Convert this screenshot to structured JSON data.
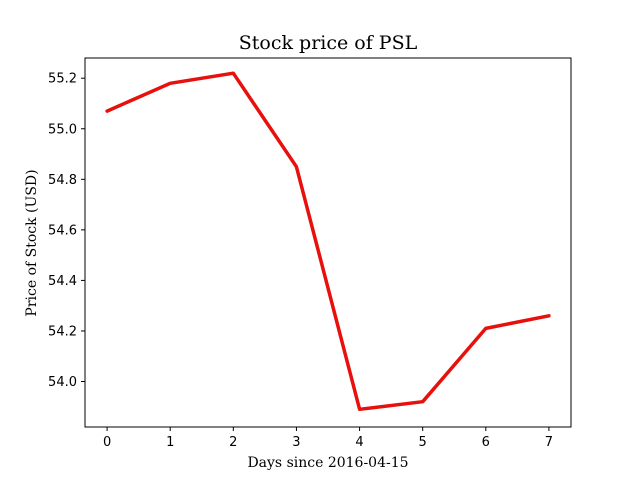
{
  "chart_data": {
    "type": "line",
    "title": "Stock price of PSL",
    "xlabel": "Days since 2016-04-15",
    "ylabel": "Price of Stock (USD)",
    "x": [
      0,
      1,
      2,
      3,
      4,
      5,
      6,
      7
    ],
    "series": [
      {
        "values": [
          55.07,
          55.18,
          55.22,
          54.85,
          53.89,
          53.92,
          54.21,
          54.26
        ],
        "color": "#e8100c"
      }
    ],
    "xlim": [
      -0.35,
      7.35
    ],
    "ylim": [
      53.82,
      55.28
    ],
    "x_ticks": [
      0,
      1,
      2,
      3,
      4,
      5,
      6,
      7
    ],
    "y_ticks": [
      54.0,
      54.2,
      54.4,
      54.6,
      54.8,
      55.0,
      55.2
    ],
    "y_tick_labels": [
      "54.0",
      "54.2",
      "54.4",
      "54.6",
      "54.8",
      "55.0",
      "55.2"
    ],
    "x_tick_labels": [
      "0",
      "1",
      "2",
      "3",
      "4",
      "5",
      "6",
      "7"
    ],
    "grid": false,
    "legend": "none"
  }
}
